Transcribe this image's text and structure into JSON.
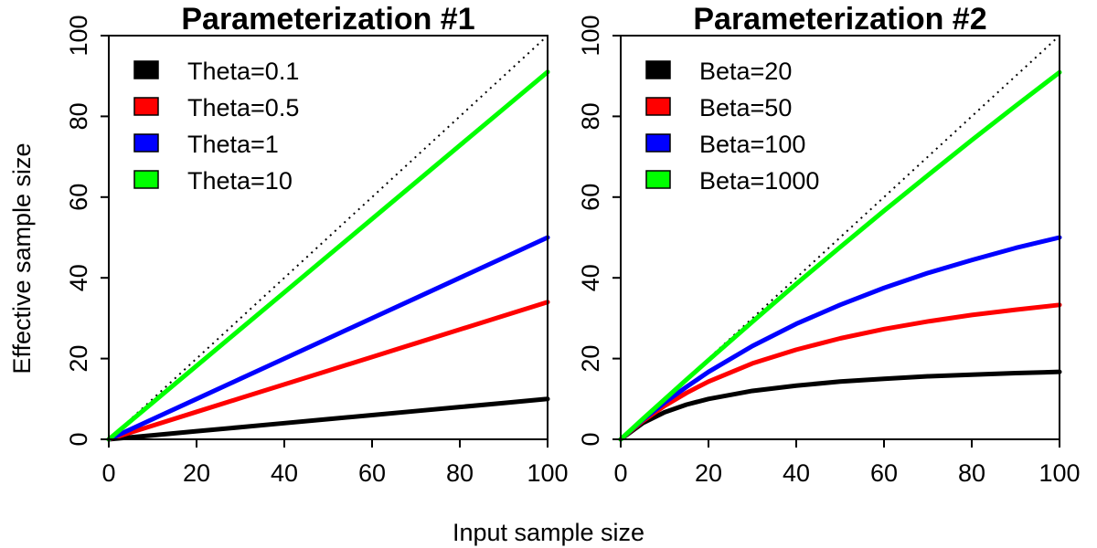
{
  "figure": {
    "xlabel": "Input sample size",
    "ylabel": "Effective sample size"
  },
  "chart_data": [
    {
      "type": "line",
      "title": "Parameterization #1",
      "xlabel": "Input sample size",
      "ylabel": "Effective sample size",
      "xlim": [
        0,
        100
      ],
      "ylim": [
        0,
        100
      ],
      "xticks": [
        "0",
        "20",
        "40",
        "60",
        "80",
        "100"
      ],
      "yticks": [
        "0",
        "20",
        "40",
        "60",
        "80",
        "100"
      ],
      "grid": false,
      "legend_position": "top-left",
      "reference_line": {
        "style": "dotted",
        "color": "#000000",
        "from": [
          0,
          0
        ],
        "to": [
          100,
          100
        ]
      },
      "x": [
        0,
        10,
        20,
        30,
        40,
        50,
        60,
        70,
        80,
        90,
        100
      ],
      "series": [
        {
          "name": "Theta=0.1",
          "color": "#000000",
          "values": [
            0,
            1.0,
            2.0,
            3.0,
            4.0,
            5.0,
            6.0,
            7.0,
            8.0,
            9.0,
            10.0
          ]
        },
        {
          "name": "Theta=0.5",
          "color": "#ff0000",
          "values": [
            0,
            3.4,
            6.8,
            10.2,
            13.6,
            17.0,
            20.4,
            23.8,
            27.2,
            30.6,
            34.0
          ]
        },
        {
          "name": "Theta=1",
          "color": "#0000ff",
          "values": [
            0,
            5.0,
            10.0,
            15.0,
            20.0,
            25.0,
            30.0,
            35.0,
            40.0,
            45.0,
            50.0
          ]
        },
        {
          "name": "Theta=10",
          "color": "#00ff00",
          "values": [
            0,
            9.1,
            18.2,
            27.3,
            36.4,
            45.5,
            54.6,
            63.7,
            72.8,
            81.9,
            91.0
          ]
        }
      ]
    },
    {
      "type": "line",
      "title": "Parameterization #2",
      "xlabel": "Input sample size",
      "ylabel": "Effective sample size",
      "xlim": [
        0,
        100
      ],
      "ylim": [
        0,
        100
      ],
      "xticks": [
        "0",
        "20",
        "40",
        "60",
        "80",
        "100"
      ],
      "yticks": [
        "0",
        "20",
        "40",
        "60",
        "80",
        "100"
      ],
      "grid": false,
      "legend_position": "top-left",
      "reference_line": {
        "style": "dotted",
        "color": "#000000",
        "from": [
          0,
          0
        ],
        "to": [
          100,
          100
        ]
      },
      "x": [
        0,
        5,
        10,
        15,
        20,
        30,
        40,
        50,
        60,
        70,
        80,
        90,
        100
      ],
      "series": [
        {
          "name": "Beta=20",
          "color": "#000000",
          "values": [
            0,
            4.0,
            6.7,
            8.6,
            10.0,
            12.0,
            13.3,
            14.3,
            15.0,
            15.6,
            16.0,
            16.4,
            16.7
          ]
        },
        {
          "name": "Beta=50",
          "color": "#ff0000",
          "values": [
            0,
            4.5,
            8.3,
            11.5,
            14.3,
            18.8,
            22.2,
            25.0,
            27.3,
            29.2,
            30.8,
            32.1,
            33.3
          ]
        },
        {
          "name": "Beta=100",
          "color": "#0000ff",
          "values": [
            0,
            4.8,
            9.1,
            13.0,
            16.7,
            23.1,
            28.6,
            33.3,
            37.5,
            41.2,
            44.4,
            47.4,
            50.0
          ]
        },
        {
          "name": "Beta=1000",
          "color": "#00ff00",
          "values": [
            0,
            5.0,
            9.9,
            14.8,
            19.6,
            29.1,
            38.5,
            47.6,
            56.6,
            65.4,
            74.1,
            82.6,
            90.9
          ]
        }
      ]
    }
  ]
}
